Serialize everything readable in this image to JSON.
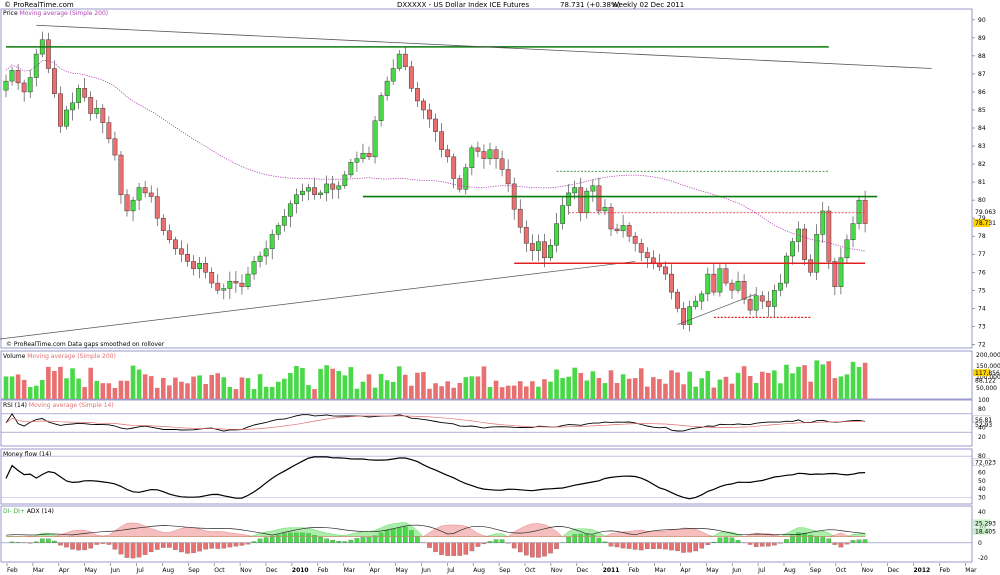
{
  "header": {
    "symbol": "DXXXXX - US Dollar Index ICE Futures",
    "last_value": "78.731 (+0.38%)",
    "period": "Weekly 02 Dec 2011",
    "brand": "© ProRealTime.com"
  },
  "panels": {
    "price": {
      "label_main": "Price",
      "label_ma": "Moving average (Simple 200)",
      "note": "© ProRealTime.com  Data gaps smoothed on rollover"
    },
    "volume": {
      "label_main": "Volume",
      "label_ma": "Moving average (Simple 200)"
    },
    "rsi": {
      "label_main": "RSI (14)",
      "label_ma": "Moving average (Simple 14)"
    },
    "mfi": {
      "label_main": "Money flow (14)"
    },
    "dmi": {
      "label_main": "DI- DI+",
      "label_adx": "ADX (14)"
    }
  },
  "colors": {
    "up": "#48d848",
    "down": "#e87070",
    "ma": "#b040b0",
    "trend_green": "#0a7a0a",
    "trend_red": "#e02020",
    "panel_border": "#8080c0",
    "price_badge": "#ffd200",
    "adx": "#2a2a2a"
  },
  "chart_data": [
    {
      "type": "candlestick",
      "name": "price",
      "y_axis_ticks": [
        72,
        73,
        74,
        75,
        76,
        77,
        78,
        79,
        80,
        81,
        82,
        83,
        84,
        85,
        86,
        87,
        88,
        89,
        90
      ],
      "ylim": [
        71.8,
        90.6
      ],
      "x_axis_labels": [
        "Feb",
        "Mar",
        "Apr",
        "May",
        "Jun",
        "Jul",
        "Aug",
        "Sep",
        "Oct",
        "Nov",
        "Dec",
        "2010",
        "Feb",
        "Mar",
        "Apr",
        "May",
        "Jun",
        "Jul",
        "Aug",
        "Sep",
        "Oct",
        "Nov",
        "Dec",
        "2011",
        "Feb",
        "Mar",
        "Apr",
        "May",
        "Jun",
        "Jul",
        "Aug",
        "Sep",
        "Oct",
        "Nov",
        "Dec",
        "2012",
        "Feb",
        "Mar"
      ],
      "last_price": "78.731",
      "ma_value": "79.063",
      "close": [
        86.6,
        87.2,
        86.5,
        86.0,
        86.8,
        88.1,
        88.9,
        87.3,
        85.9,
        84.1,
        85.0,
        85.4,
        86.2,
        85.7,
        84.8,
        85.1,
        84.3,
        83.4,
        82.5,
        80.3,
        79.4,
        80.0,
        80.7,
        80.4,
        80.2,
        79.0,
        78.3,
        77.8,
        77.3,
        77.0,
        76.6,
        76.2,
        76.5,
        76.0,
        75.4,
        75.0,
        75.1,
        75.5,
        75.4,
        75.2,
        75.9,
        76.6,
        76.9,
        77.3,
        78.1,
        78.6,
        79.1,
        79.8,
        80.3,
        80.5,
        80.7,
        80.3,
        80.4,
        80.9,
        80.6,
        80.8,
        81.4,
        82.1,
        82.3,
        82.6,
        82.4,
        84.4,
        85.8,
        86.6,
        87.3,
        88.1,
        87.4,
        86.2,
        85.5,
        85.0,
        84.5,
        83.8,
        82.8,
        82.4,
        81.2,
        80.6,
        81.8,
        82.9,
        82.7,
        82.3,
        82.8,
        82.3,
        81.7,
        80.9,
        79.5,
        78.5,
        77.6,
        77.2,
        77.7,
        76.8,
        77.5,
        78.7,
        79.7,
        80.4,
        80.7,
        79.3,
        80.5,
        80.8,
        79.4,
        79.6,
        78.4,
        78.3,
        78.6,
        78.0,
        77.6,
        77.1,
        76.8,
        76.5,
        76.3,
        75.9,
        74.9,
        74.0,
        73.1,
        74.1,
        74.4,
        74.8,
        75.9,
        74.9,
        76.2,
        75.4,
        75.0,
        75.5,
        74.5,
        73.9,
        74.7,
        74.4,
        74.1,
        75.0,
        75.4,
        76.9,
        77.7,
        78.4,
        76.7,
        76.0,
        78.1,
        79.4,
        76.6,
        75.2,
        76.8,
        77.8,
        78.7,
        80.0,
        78.7
      ]
    },
    {
      "type": "bar",
      "name": "volume",
      "y_axis_ticks": [
        "200,000",
        "150,000",
        "100,000",
        "50,000"
      ],
      "ylim": [
        0,
        210000
      ],
      "last_value": "117,856",
      "ma_value": "88,122"
    },
    {
      "type": "line",
      "name": "rsi",
      "y_axis_ticks": [
        100,
        80,
        40,
        20
      ],
      "ylim": [
        0,
        100
      ],
      "last_value": "56.81",
      "ma_value": "52.93"
    },
    {
      "type": "line",
      "name": "money_flow",
      "y_axis_ticks": [
        80,
        70,
        60,
        50,
        40,
        30
      ],
      "ylim": [
        22,
        85
      ],
      "last_value": "72.023"
    },
    {
      "type": "area",
      "name": "dmi_adx",
      "y_axis_ticks": [
        40,
        20,
        0,
        -20
      ],
      "ylim": [
        -25,
        48
      ],
      "last_value": "18.405",
      "series_last": [
        "25.293",
        "18.405"
      ]
    }
  ]
}
